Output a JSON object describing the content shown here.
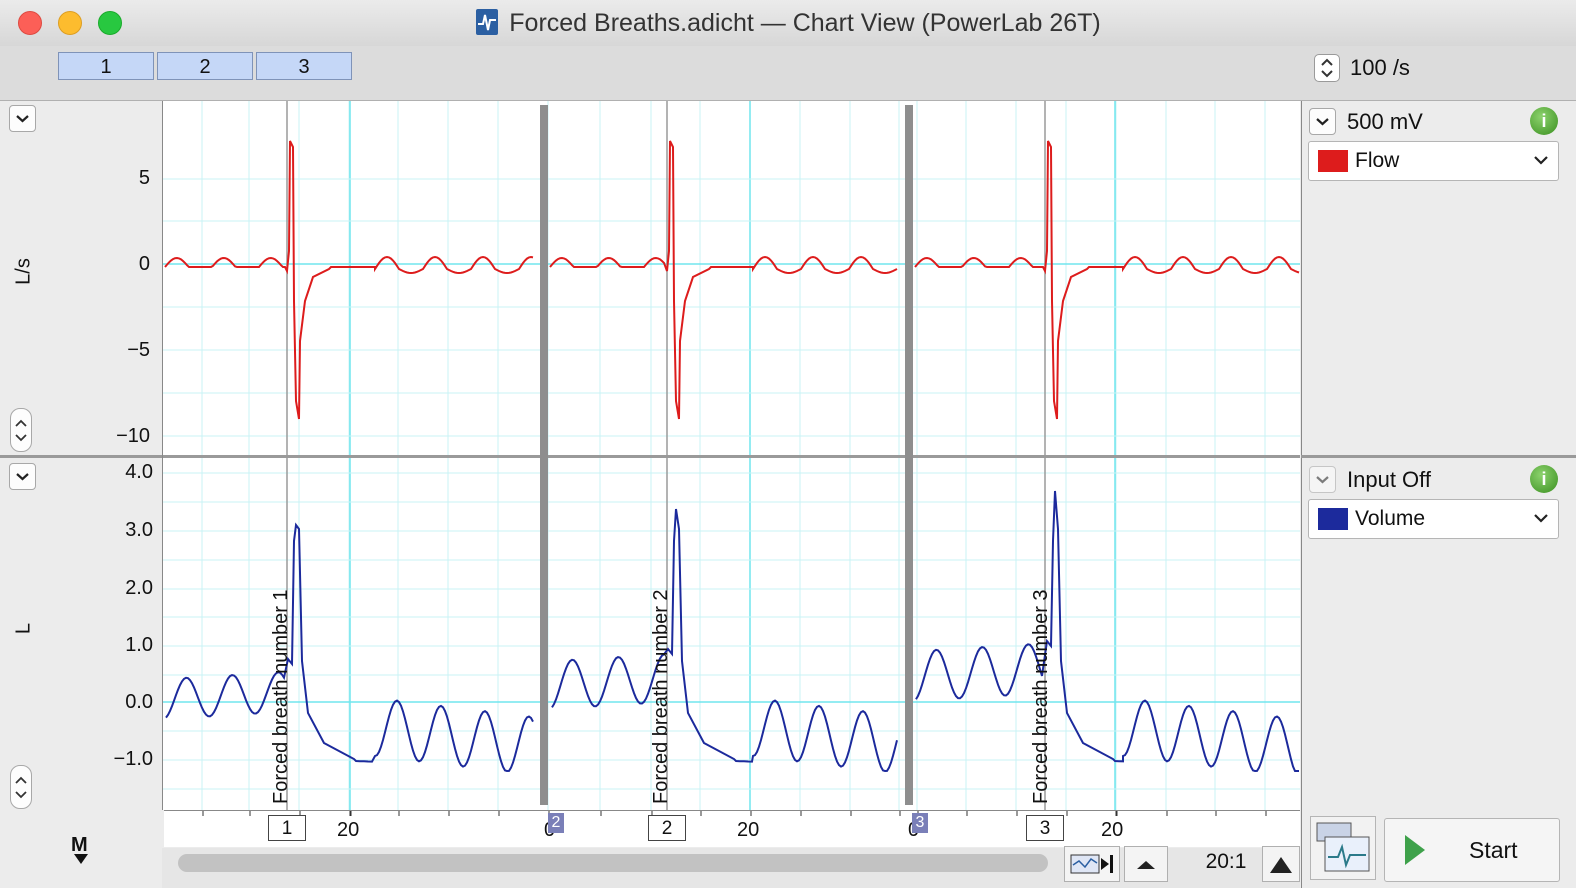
{
  "window": {
    "title": "Forced Breaths.adicht — Chart View (PowerLab 26T)",
    "icon": "chart-document-icon"
  },
  "toolbar": {
    "blocks": [
      "1",
      "2",
      "3"
    ],
    "sample_rate": "100 /s"
  },
  "channels": [
    {
      "name": "Flow",
      "unit": "L/s",
      "range": "500 mV",
      "color": "#dd1c1c",
      "ticks": [
        "5",
        "0",
        "−5",
        "−10"
      ]
    },
    {
      "name": "Volume",
      "unit": "L",
      "range": "Input Off",
      "color": "#1c2a9c",
      "ticks": [
        "4.0",
        "3.0",
        "2.0",
        "1.0",
        "0.0",
        "−1.0"
      ]
    }
  ],
  "comments": [
    {
      "number": "1",
      "text": "Forced breath number 1"
    },
    {
      "number": "2",
      "text": "Forced breath number 2"
    },
    {
      "number": "3",
      "text": "Forced breath number 3"
    }
  ],
  "time_axis": {
    "labels": [
      "20",
      "0",
      "20",
      "0",
      "20"
    ],
    "block_markers": [
      "2",
      "3"
    ]
  },
  "footer": {
    "marker_label": "M",
    "zoom": "20:1",
    "start_label": "Start"
  }
}
